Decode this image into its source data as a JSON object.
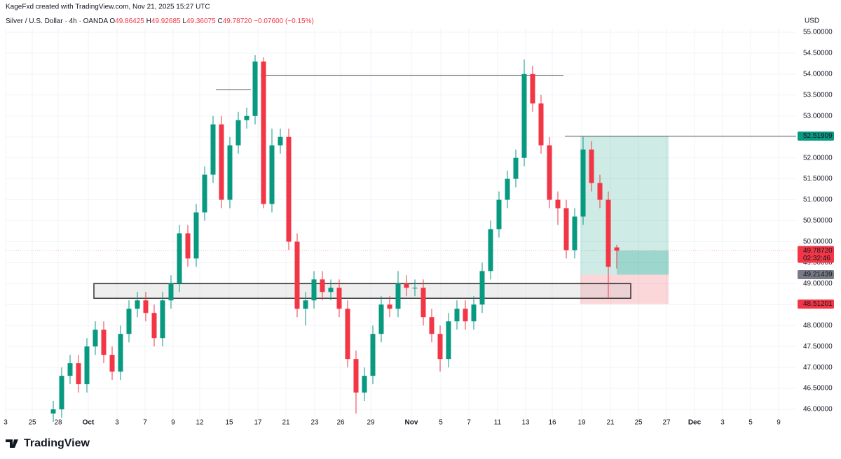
{
  "chart_data": {
    "type": "candlestick",
    "credit": "KageFxd created with TradingView.com, Nov 21, 2025 15:27 UTC",
    "title": "Silver / U.S. Dollar · 4h · OANDA",
    "ohlc_letters": {
      "o": "O",
      "h": "H",
      "l": "L",
      "c": "C"
    },
    "change": "−0.07600 (−0.15%)",
    "currency": "USD",
    "brand": "TradingView",
    "up_color": "#089981",
    "down_color": "#f23645",
    "grid": true,
    "x": [
      17,
      20,
      23,
      26,
      29,
      32,
      35,
      38,
      41,
      44,
      47,
      50,
      53,
      56,
      59,
      62,
      65,
      68,
      71,
      74,
      77,
      80,
      83,
      86,
      89,
      92,
      95,
      98,
      101,
      104,
      107,
      110,
      113,
      116,
      119,
      122,
      125,
      128,
      131,
      134,
      137,
      140,
      143,
      146,
      149,
      152,
      155,
      158,
      161,
      164,
      167,
      170,
      173,
      176,
      179,
      182,
      185,
      188,
      191,
      194,
      197,
      200,
      203,
      206,
      209,
      212,
      215,
      218
    ],
    "open": [
      45.9,
      46.0,
      46.8,
      47.1,
      46.6,
      47.5,
      47.9,
      47.3,
      46.9,
      47.8,
      48.4,
      48.6,
      48.3,
      47.7,
      48.6,
      49.0,
      50.2,
      49.6,
      50.7,
      51.6,
      52.8,
      51.0,
      52.3,
      52.9,
      53.0,
      54.3,
      50.9,
      52.3,
      52.5,
      50.0,
      48.4,
      48.6,
      49.1,
      48.8,
      48.9,
      48.4,
      47.2,
      46.4,
      46.8,
      47.8,
      48.5,
      48.4,
      49.0,
      48.9,
      48.9,
      48.2,
      47.8,
      47.2,
      48.1,
      48.4,
      48.1,
      48.5,
      49.3,
      50.3,
      51.0,
      51.5,
      52.0,
      54.0,
      53.3,
      52.3,
      51.0,
      50.8,
      49.8,
      50.6,
      52.2,
      51.4,
      51.0,
      49.86425
    ],
    "high": [
      46.2,
      47.0,
      47.3,
      47.3,
      47.7,
      48.1,
      48.1,
      47.5,
      48.0,
      48.6,
      48.8,
      48.8,
      48.5,
      48.8,
      49.2,
      50.4,
      50.4,
      50.9,
      51.8,
      53.0,
      53.0,
      52.5,
      53.1,
      53.2,
      54.45,
      54.4,
      52.7,
      52.7,
      52.7,
      50.2,
      48.8,
      49.3,
      49.3,
      49.1,
      49.1,
      48.6,
      47.4,
      47.0,
      48.0,
      48.7,
      48.7,
      49.3,
      49.2,
      49.1,
      49.1,
      48.4,
      48.0,
      48.3,
      48.6,
      48.6,
      48.7,
      49.5,
      50.5,
      51.2,
      51.7,
      52.2,
      54.35,
      54.2,
      53.5,
      52.5,
      51.2,
      51.0,
      50.8,
      52.5,
      52.4,
      51.6,
      51.2,
      49.92685
    ],
    "low": [
      45.7,
      45.8,
      46.6,
      46.4,
      46.4,
      47.3,
      47.1,
      46.7,
      46.7,
      47.6,
      48.2,
      48.1,
      47.5,
      47.5,
      48.4,
      48.8,
      49.4,
      49.4,
      50.5,
      51.4,
      50.8,
      50.8,
      52.1,
      52.7,
      52.8,
      50.8,
      50.7,
      52.1,
      49.8,
      48.2,
      48.0,
      48.4,
      48.6,
      48.6,
      48.2,
      47.0,
      45.9,
      46.2,
      46.6,
      47.6,
      48.2,
      48.2,
      48.7,
      48.7,
      48.0,
      47.6,
      46.9,
      47.0,
      47.9,
      47.9,
      47.9,
      48.3,
      49.1,
      50.1,
      50.8,
      51.3,
      51.8,
      53.1,
      52.1,
      50.8,
      50.4,
      49.6,
      49.6,
      50.4,
      51.2,
      50.8,
      48.65,
      49.36075
    ],
    "close": [
      46.0,
      46.8,
      47.1,
      46.6,
      47.5,
      47.9,
      47.3,
      46.9,
      47.8,
      48.4,
      48.6,
      48.3,
      47.7,
      48.6,
      49.0,
      50.2,
      49.6,
      50.7,
      51.6,
      52.8,
      51.0,
      52.3,
      52.9,
      53.0,
      54.3,
      50.9,
      52.3,
      52.5,
      50.0,
      48.4,
      48.6,
      49.1,
      48.8,
      48.9,
      48.4,
      47.2,
      46.4,
      46.8,
      47.8,
      48.5,
      48.4,
      49.0,
      48.9,
      48.9,
      48.2,
      47.8,
      47.2,
      48.1,
      48.4,
      48.1,
      48.5,
      49.3,
      50.3,
      51.0,
      51.5,
      52.0,
      54.0,
      53.3,
      52.3,
      51.0,
      50.8,
      49.8,
      50.6,
      52.2,
      51.4,
      51.0,
      49.4,
      49.7872
    ],
    "last_price": {
      "value": 49.7872,
      "label": "49.78720"
    },
    "countdown": "02:32:46",
    "position": {
      "target": 52.51909,
      "entry": 49.21439,
      "stop": 48.51201,
      "x": [
        205,
        236.5
      ]
    },
    "zone": {
      "top": 49.0,
      "bottom": 48.65,
      "x": [
        31.5,
        223
      ]
    },
    "levels": [
      {
        "price": 53.97,
        "x": [
          91,
          199
        ]
      },
      {
        "price": 53.63,
        "x": [
          75,
          87.5
        ]
      },
      {
        "price": 52.51909,
        "x": [
          199.5,
          282
        ]
      }
    ],
    "xlim": [
      0,
      282
    ],
    "xticks": [
      {
        "value": 0,
        "label": "3"
      },
      {
        "value": 9.5,
        "label": "25"
      },
      {
        "value": 18.75,
        "label": "28"
      },
      {
        "value": 29.5,
        "label": "Oct"
      },
      {
        "value": 39.75,
        "label": "3"
      },
      {
        "value": 49.75,
        "label": "7"
      },
      {
        "value": 59.75,
        "label": "9"
      },
      {
        "value": 69.25,
        "label": "12"
      },
      {
        "value": 79.75,
        "label": "15"
      },
      {
        "value": 90,
        "label": "17"
      },
      {
        "value": 100,
        "label": "21"
      },
      {
        "value": 110.25,
        "label": "23"
      },
      {
        "value": 119.5,
        "label": "26"
      },
      {
        "value": 130.25,
        "label": "29"
      },
      {
        "value": 144.75,
        "label": "Nov"
      },
      {
        "value": 155.25,
        "label": "5"
      },
      {
        "value": 165.25,
        "label": "7"
      },
      {
        "value": 175.5,
        "label": "11"
      },
      {
        "value": 185.5,
        "label": "13"
      },
      {
        "value": 195,
        "label": "16"
      },
      {
        "value": 205.5,
        "label": "19"
      },
      {
        "value": 215.75,
        "label": "21"
      },
      {
        "value": 225.75,
        "label": "25"
      },
      {
        "value": 235.75,
        "label": "27"
      },
      {
        "value": 245.75,
        "label": "Dec"
      },
      {
        "value": 255.75,
        "label": "3"
      },
      {
        "value": 265.75,
        "label": "5"
      },
      {
        "value": 275.75,
        "label": "9"
      }
    ],
    "ylim": [
      45.75,
      55.4
    ],
    "yticks": [
      {
        "value": 46,
        "label": "46.00000"
      },
      {
        "value": 46.5,
        "label": "46.50000"
      },
      {
        "value": 47,
        "label": "47.00000"
      },
      {
        "value": 47.5,
        "label": "47.50000"
      },
      {
        "value": 48,
        "label": "48.00000"
      },
      {
        "value": 48.5,
        "label": "48.50000"
      },
      {
        "value": 49,
        "label": "49.00000"
      },
      {
        "value": 49.5,
        "label": "49.50000"
      },
      {
        "value": 50,
        "label": "50.00000"
      },
      {
        "value": 50.5,
        "label": "50.50000"
      },
      {
        "value": 51,
        "label": "51.00000"
      },
      {
        "value": 51.5,
        "label": "51.50000"
      },
      {
        "value": 52,
        "label": "52.00000"
      },
      {
        "value": 52.5,
        "label": "52.50000"
      },
      {
        "value": 53,
        "label": "53.00000"
      },
      {
        "value": 53.5,
        "label": "53.50000"
      },
      {
        "value": 54,
        "label": "54.00000"
      },
      {
        "value": 54.5,
        "label": "54.50000"
      },
      {
        "value": 55,
        "label": "55.00000"
      }
    ]
  }
}
